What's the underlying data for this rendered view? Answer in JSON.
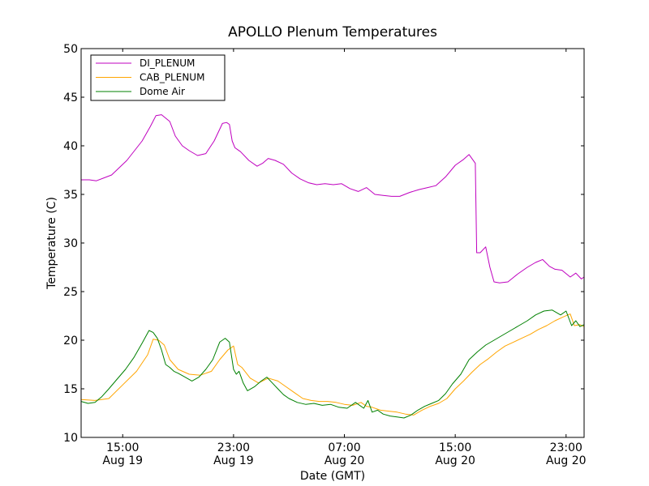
{
  "chart_data": {
    "type": "line",
    "title": "APOLLO Plenum Temperatures",
    "xlabel": "Date (GMT)",
    "ylabel": "Temperature (C)",
    "xlim": [
      0,
      36.3
    ],
    "ylim": [
      10,
      50
    ],
    "grid": false,
    "legend_position": "top-left",
    "yticks": [
      10,
      15,
      20,
      25,
      30,
      35,
      40,
      45,
      50
    ],
    "xticks": [
      {
        "x": 3,
        "time": "15:00",
        "date": "Aug 19"
      },
      {
        "x": 11,
        "time": "23:00",
        "date": "Aug 19"
      },
      {
        "x": 19,
        "time": "07:00",
        "date": "Aug 20"
      },
      {
        "x": 27,
        "time": "15:00",
        "date": "Aug 20"
      },
      {
        "x": 35,
        "time": "23:00",
        "date": "Aug 20"
      }
    ],
    "series": [
      {
        "name": "DI_PLENUM",
        "color": "#bf00bf",
        "x": [
          0,
          0.6,
          1.1,
          2.2,
          3.3,
          4.4,
          5.0,
          5.4,
          5.8,
          6.4,
          6.8,
          7.3,
          7.8,
          8.4,
          9.0,
          9.6,
          10.2,
          10.5,
          10.7,
          10.9,
          11.1,
          11.3,
          11.5,
          12.1,
          12.7,
          13.1,
          13.5,
          14.0,
          14.6,
          15.2,
          15.8,
          16.4,
          17.0,
          17.6,
          18.2,
          18.8,
          19.4,
          20.0,
          20.6,
          21.2,
          21.8,
          22.4,
          23.0,
          23.7,
          24.4,
          25.0,
          25.6,
          26.3,
          27.0,
          27.6,
          28.0,
          28.45,
          28.55,
          28.8,
          29.2,
          29.5,
          29.8,
          30.2,
          30.8,
          31.5,
          32.2,
          32.8,
          33.3,
          33.8,
          34.2,
          34.7,
          35.3,
          35.7,
          36.1,
          36.3
        ],
        "values": [
          36.5,
          36.5,
          36.4,
          37.0,
          38.5,
          40.5,
          42.0,
          43.1,
          43.2,
          42.5,
          41.0,
          40.0,
          39.5,
          39.0,
          39.2,
          40.5,
          42.3,
          42.4,
          42.2,
          40.5,
          39.8,
          39.6,
          39.4,
          38.5,
          37.9,
          38.2,
          38.7,
          38.5,
          38.1,
          37.2,
          36.6,
          36.2,
          36.0,
          36.1,
          36.0,
          36.1,
          35.6,
          35.3,
          35.7,
          35.0,
          34.9,
          34.8,
          34.8,
          35.2,
          35.5,
          35.7,
          35.9,
          36.8,
          38.0,
          38.6,
          39.1,
          38.2,
          29.0,
          29.0,
          29.6,
          27.5,
          26.0,
          25.9,
          26.0,
          26.8,
          27.5,
          28.0,
          28.3,
          27.6,
          27.3,
          27.2,
          26.5,
          26.9,
          26.3,
          26.5
        ]
      },
      {
        "name": "CAB_PLENUM",
        "color": "#ffa500",
        "x": [
          0,
          1.0,
          2.0,
          3.0,
          4.0,
          4.8,
          5.2,
          5.6,
          6.0,
          6.4,
          7.0,
          7.8,
          8.6,
          9.4,
          10.0,
          10.6,
          11.0,
          11.3,
          11.6,
          12.2,
          12.8,
          13.5,
          14.2,
          14.8,
          15.4,
          16.0,
          16.6,
          17.2,
          17.8,
          18.4,
          19.0,
          19.6,
          20.2,
          20.6,
          21.0,
          21.6,
          22.2,
          22.8,
          23.4,
          24.0,
          24.6,
          25.2,
          25.8,
          26.4,
          27.0,
          27.6,
          28.2,
          28.8,
          29.4,
          30.0,
          30.6,
          31.2,
          31.8,
          32.4,
          33.0,
          33.6,
          34.2,
          34.8,
          35.3,
          35.6,
          36.0,
          36.3
        ],
        "values": [
          13.9,
          13.8,
          14.0,
          15.4,
          16.8,
          18.5,
          20.1,
          20.0,
          19.5,
          18.0,
          17.0,
          16.5,
          16.4,
          16.8,
          18.0,
          19.0,
          19.4,
          17.5,
          17.2,
          16.1,
          15.6,
          16.1,
          15.8,
          15.2,
          14.6,
          14.0,
          13.8,
          13.7,
          13.7,
          13.6,
          13.4,
          13.3,
          13.6,
          13.2,
          13.1,
          12.8,
          12.7,
          12.6,
          12.4,
          12.3,
          12.8,
          13.2,
          13.5,
          14.0,
          15.0,
          15.8,
          16.7,
          17.5,
          18.1,
          18.8,
          19.4,
          19.8,
          20.2,
          20.6,
          21.1,
          21.5,
          22.0,
          22.4,
          22.7,
          21.5,
          21.6,
          21.4
        ]
      },
      {
        "name": "Dome Air",
        "color": "#008000",
        "x": [
          0,
          0.5,
          1.0,
          1.5,
          2.0,
          2.6,
          3.2,
          3.8,
          4.4,
          4.9,
          5.2,
          5.5,
          5.8,
          6.1,
          6.4,
          6.7,
          7.0,
          7.5,
          8.0,
          8.5,
          9.0,
          9.5,
          10.0,
          10.4,
          10.7,
          11.0,
          11.2,
          11.4,
          11.7,
          12.0,
          12.5,
          13.0,
          13.4,
          13.8,
          14.2,
          14.6,
          15.0,
          15.6,
          16.2,
          16.8,
          17.4,
          18.0,
          18.6,
          19.2,
          19.8,
          20.4,
          20.7,
          21.0,
          21.4,
          21.8,
          22.3,
          22.8,
          23.3,
          23.8,
          24.3,
          24.8,
          25.3,
          25.8,
          26.3,
          26.8,
          27.4,
          28.0,
          28.6,
          29.2,
          29.8,
          30.4,
          31.0,
          31.6,
          32.2,
          32.8,
          33.4,
          34.0,
          34.6,
          35.0,
          35.4,
          35.7,
          36.0,
          36.3
        ],
        "values": [
          13.7,
          13.5,
          13.6,
          14.2,
          15.0,
          16.0,
          17.0,
          18.2,
          19.7,
          21.0,
          20.8,
          20.2,
          19.0,
          17.5,
          17.2,
          16.8,
          16.6,
          16.2,
          15.8,
          16.2,
          17.0,
          18.0,
          19.8,
          20.2,
          19.8,
          17.0,
          16.5,
          16.8,
          15.6,
          14.8,
          15.2,
          15.8,
          16.2,
          15.6,
          15.0,
          14.4,
          14.0,
          13.6,
          13.4,
          13.5,
          13.3,
          13.4,
          13.1,
          13.0,
          13.6,
          13.0,
          13.8,
          12.6,
          12.8,
          12.4,
          12.2,
          12.1,
          12.0,
          12.3,
          12.8,
          13.2,
          13.5,
          13.8,
          14.5,
          15.5,
          16.5,
          18.0,
          18.8,
          19.5,
          20.0,
          20.5,
          21.0,
          21.5,
          22.0,
          22.6,
          23.0,
          23.1,
          22.6,
          23.0,
          21.5,
          22.0,
          21.4,
          21.6
        ]
      }
    ]
  }
}
